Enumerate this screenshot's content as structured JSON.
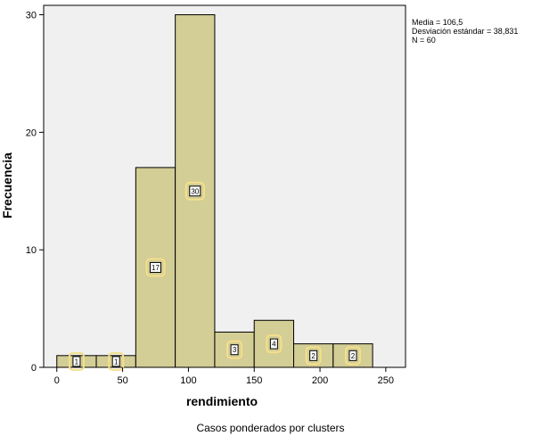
{
  "chart_data": {
    "type": "bar",
    "subtype": "histogram",
    "title": "",
    "xlabel": "rendimiento",
    "ylabel": "Frecuencia",
    "footnote": "Casos ponderados por clusters",
    "bins": [
      {
        "start": 0,
        "end": 30,
        "value": 1
      },
      {
        "start": 30,
        "end": 60,
        "value": 1
      },
      {
        "start": 60,
        "end": 90,
        "value": 17
      },
      {
        "start": 90,
        "end": 120,
        "value": 30
      },
      {
        "start": 120,
        "end": 150,
        "value": 3
      },
      {
        "start": 150,
        "end": 180,
        "value": 4
      },
      {
        "start": 180,
        "end": 210,
        "value": 2
      },
      {
        "start": 210,
        "end": 240,
        "value": 2
      }
    ],
    "data_labels": [
      "1",
      "1",
      "17",
      "30",
      "3",
      "4",
      "2",
      "2"
    ],
    "xlim": [
      -10,
      265
    ],
    "ylim": [
      0,
      30.8
    ],
    "xticks": [
      0,
      50,
      100,
      150,
      200,
      250
    ],
    "xtick_labels": [
      "0",
      "50",
      "100",
      "150",
      "200",
      "250"
    ],
    "yticks": [
      0,
      10,
      20,
      30
    ],
    "ytick_labels": [
      "0",
      "10",
      "20",
      "30"
    ],
    "grid": false,
    "stats": {
      "mean": "Media = 106,5",
      "std": "Desviación estándar = 38,831",
      "n": "N = 60"
    },
    "colors": {
      "bar_fill": "#d3cd96",
      "plot_background": "#f0f0f0",
      "label_ring": "#f5e08a"
    }
  }
}
